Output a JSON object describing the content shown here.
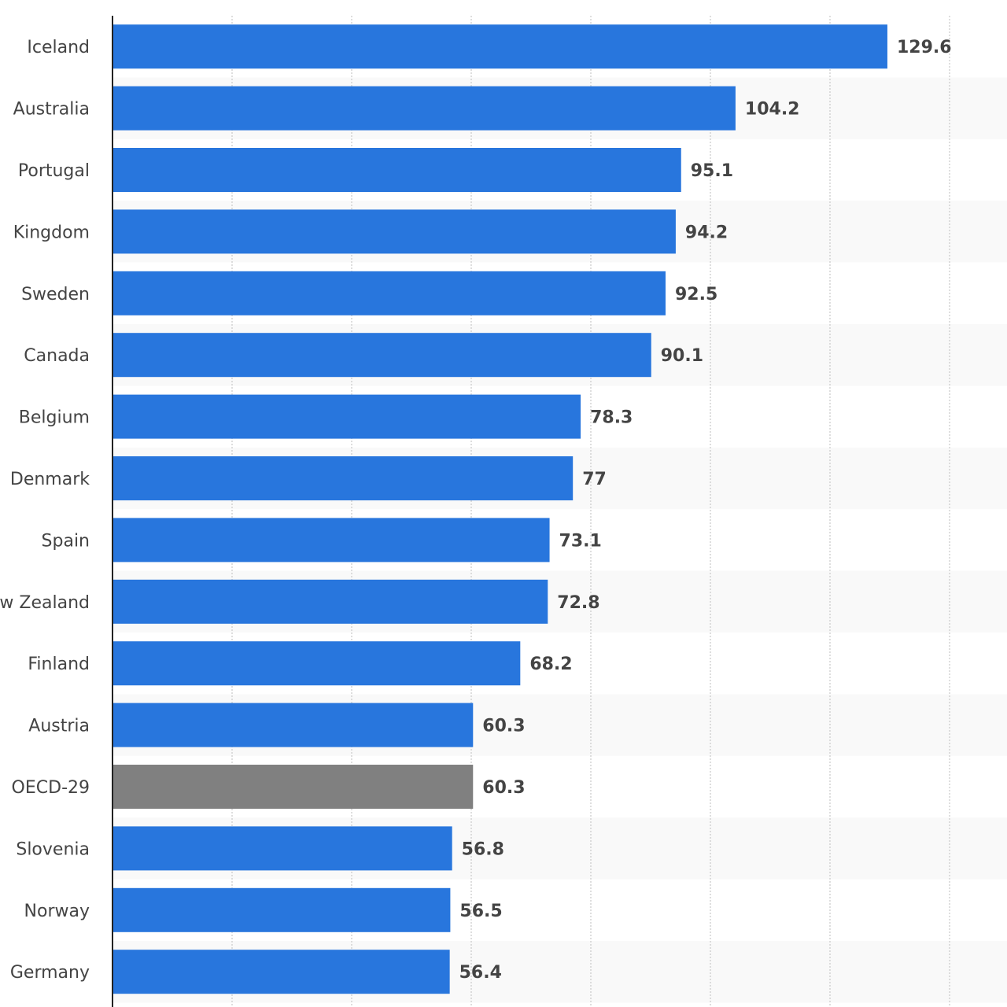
{
  "chart_data": {
    "type": "bar",
    "orientation": "horizontal",
    "title": "",
    "xlabel": "",
    "ylabel": "",
    "xlim": [
      0,
      140
    ],
    "grid": true,
    "categories": [
      "Iceland",
      "Australia",
      "Portugal",
      "Kingdom",
      "Sweden",
      "Canada",
      "Belgium",
      "Denmark",
      "Spain",
      "w Zealand",
      "Finland",
      "Austria",
      "OECD-29",
      "Slovenia",
      "Norway",
      "Germany"
    ],
    "values": [
      129.6,
      104.2,
      95.1,
      94.2,
      92.5,
      90.1,
      78.3,
      77,
      73.1,
      72.8,
      68.2,
      60.3,
      60.3,
      56.8,
      56.5,
      56.4
    ],
    "value_labels": [
      "129.6",
      "104.2",
      "95.1",
      "94.2",
      "92.5",
      "90.1",
      "78.3",
      "77",
      "73.1",
      "72.8",
      "68.2",
      "60.3",
      "60.3",
      "56.8",
      "56.5",
      "56.4"
    ],
    "highlight_category": "OECD-29",
    "colors": {
      "bar": "#2876dd",
      "highlight": "#808080",
      "label": "#444444",
      "stripe": "#f9f9f9",
      "grid": "#c8c8c8",
      "axis": "#222222"
    }
  }
}
